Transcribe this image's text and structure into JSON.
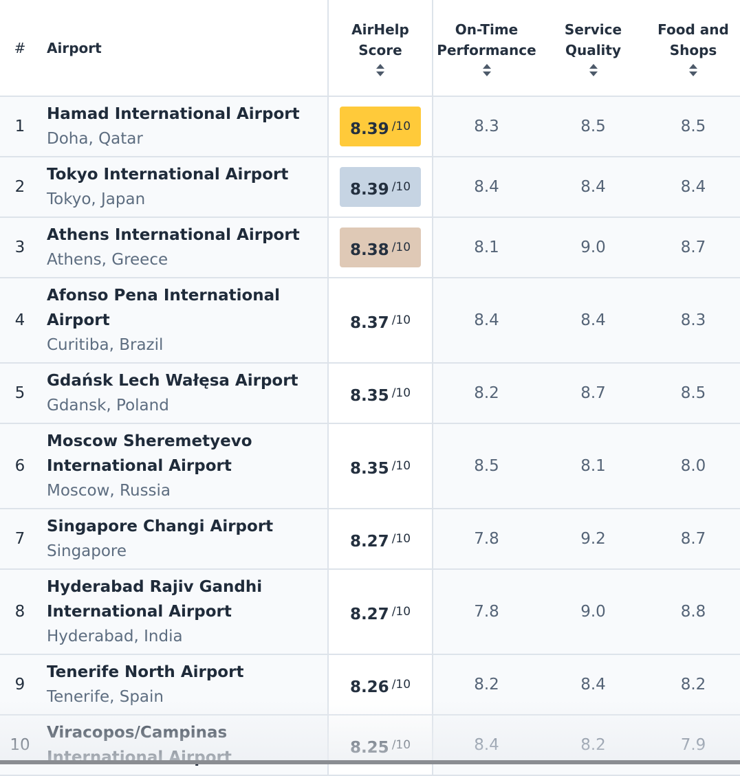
{
  "table": {
    "headers": {
      "rank": "#",
      "airport": "Airport",
      "score": "AirHelp Score",
      "ontime": "On-Time Perfor­mance",
      "service": "Service Quality",
      "food": "Food and Shops"
    },
    "score_suffix": "/10",
    "rows": [
      {
        "rank": "1",
        "airport": "Hamad International Airport",
        "location": "Doha, Qatar",
        "score": "8.39",
        "ontime": "8.3",
        "service": "8.5",
        "food": "8.5"
      },
      {
        "rank": "2",
        "airport": "Tokyo International Airport",
        "location": "Tokyo, Japan",
        "score": "8.39",
        "ontime": "8.4",
        "service": "8.4",
        "food": "8.4"
      },
      {
        "rank": "3",
        "airport": "Athens International Airport",
        "location": "Athens, Greece",
        "score": "8.38",
        "ontime": "8.1",
        "service": "9.0",
        "food": "8.7"
      },
      {
        "rank": "4",
        "airport": "Afonso Pena International Airport",
        "location": "Curitiba, Brazil",
        "score": "8.37",
        "ontime": "8.4",
        "service": "8.4",
        "food": "8.3"
      },
      {
        "rank": "5",
        "airport": "Gdańsk Lech Wałęsa Airport",
        "location": "Gdansk, Poland",
        "score": "8.35",
        "ontime": "8.2",
        "service": "8.7",
        "food": "8.5"
      },
      {
        "rank": "6",
        "airport": "Moscow Sheremetyevo International Airport",
        "location": "Moscow, Russia",
        "score": "8.35",
        "ontime": "8.5",
        "service": "8.1",
        "food": "8.0"
      },
      {
        "rank": "7",
        "airport": "Singapore Changi Airport",
        "location": "Singapore",
        "score": "8.27",
        "ontime": "7.8",
        "service": "9.2",
        "food": "8.7"
      },
      {
        "rank": "8",
        "airport": "Hyderabad Rajiv Gandhi International Airport",
        "location": "Hyderabad, India",
        "score": "8.27",
        "ontime": "7.8",
        "service": "9.0",
        "food": "8.8"
      },
      {
        "rank": "9",
        "airport": "Tenerife North Airport",
        "location": "Tenerife, Spain",
        "score": "8.26",
        "ontime": "8.2",
        "service": "8.4",
        "food": "8.2"
      },
      {
        "rank": "10",
        "airport": "Viracopos/Campinas International Airport",
        "location": null,
        "score": "8.25",
        "ontime": "8.4",
        "service": "8.2",
        "food": "7.9"
      }
    ]
  }
}
